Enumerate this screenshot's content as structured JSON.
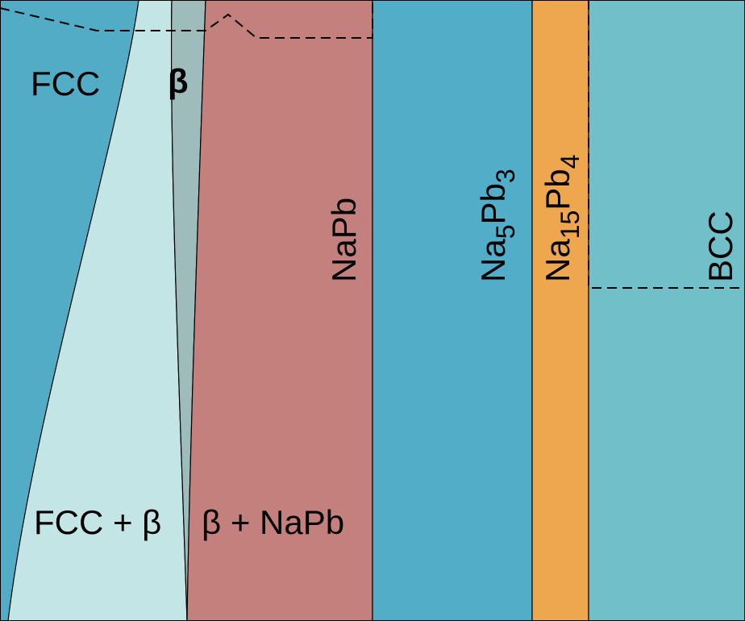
{
  "regions": [
    {
      "label": "FCC"
    },
    {
      "label": "β"
    },
    {
      "label": "FCC + β"
    },
    {
      "label": "β + NaPb"
    },
    {
      "label": "NaPb"
    },
    {
      "label_parts": [
        "Na",
        "5",
        "Pb",
        "3"
      ]
    },
    {
      "label_parts": [
        "Na",
        "15",
        "Pb",
        "4"
      ]
    },
    {
      "label": "BCC"
    }
  ]
}
